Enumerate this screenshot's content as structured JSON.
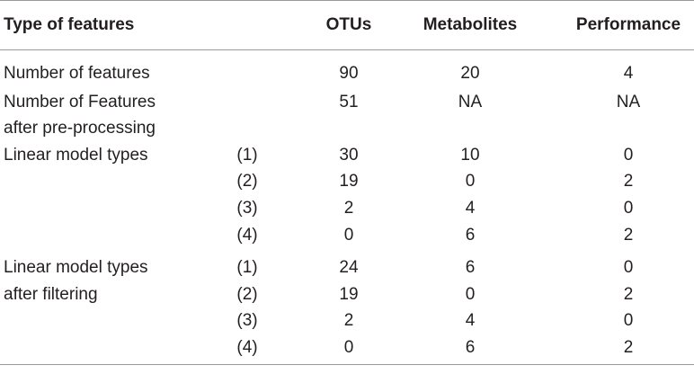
{
  "header": {
    "type": "Type of features",
    "otus": "OTUs",
    "metabolites": "Metabolites",
    "performance": "Performance"
  },
  "rows": [
    {
      "label": "Number of features",
      "sub": "",
      "otus": "90",
      "metabolites": "20",
      "performance": "4"
    },
    {
      "label": "Number of Features",
      "sub": "",
      "otus": "51",
      "metabolites": "NA",
      "performance": "NA"
    },
    {
      "label": "after pre-processing",
      "sub": "",
      "otus": "",
      "metabolites": "",
      "performance": ""
    },
    {
      "label": "Linear model types",
      "sub": "(1)",
      "otus": "30",
      "metabolites": "10",
      "performance": "0"
    },
    {
      "label": "",
      "sub": "(2)",
      "otus": "19",
      "metabolites": "0",
      "performance": "2"
    },
    {
      "label": "",
      "sub": "(3)",
      "otus": "2",
      "metabolites": "4",
      "performance": "0"
    },
    {
      "label": "",
      "sub": "(4)",
      "otus": "0",
      "metabolites": "6",
      "performance": "2"
    },
    {
      "label": "Linear model types",
      "sub": "(1)",
      "otus": "24",
      "metabolites": "6",
      "performance": "0"
    },
    {
      "label": "after filtering",
      "sub": "(2)",
      "otus": "19",
      "metabolites": "0",
      "performance": "2"
    },
    {
      "label": "",
      "sub": "(3)",
      "otus": "2",
      "metabolites": "4",
      "performance": "0"
    },
    {
      "label": "",
      "sub": "(4)",
      "otus": "0",
      "metabolites": "6",
      "performance": "2"
    }
  ]
}
